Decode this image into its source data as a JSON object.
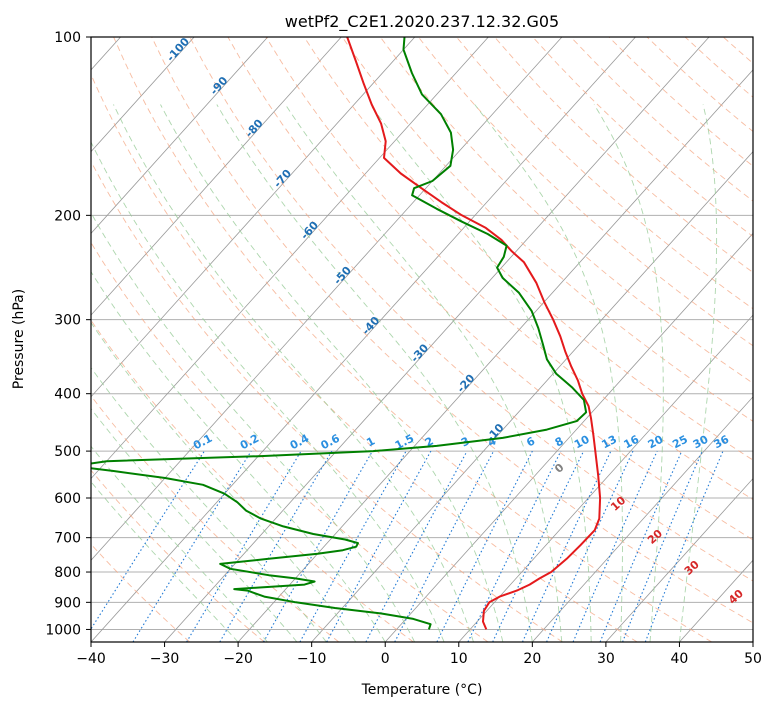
{
  "chart_data": {
    "type": "line",
    "title": "wetPf2_C2E1.2020.237.12.32.G05",
    "xlabel": "Temperature (°C)",
    "ylabel": "Pressure (hPa)",
    "xlim": [
      -40,
      50
    ],
    "ylim": [
      1050,
      100
    ],
    "y_scale": "log",
    "grid": true,
    "x_ticks": [
      -40,
      -30,
      -20,
      -10,
      0,
      10,
      20,
      30,
      40,
      50
    ],
    "y_ticks": [
      100,
      200,
      300,
      400,
      500,
      600,
      700,
      800,
      900,
      1000
    ],
    "colors": {
      "temperature": "#e41a1c",
      "dewpoint": "#008000",
      "isotherm": "#999999",
      "dry_adiabat": "#f4a582",
      "moist_adiabat": "#99cc99",
      "mixing_ratio": "#1f78d4",
      "grid": "#b0b0b0"
    },
    "series": [
      {
        "values": [
          {
            "p": 1000,
            "t": 12.2
          },
          {
            "p": 970,
            "t": 10.8
          },
          {
            "p": 930,
            "t": 9.6
          },
          {
            "p": 900,
            "t": 9.3
          },
          {
            "p": 880,
            "t": 10.0
          },
          {
            "p": 860,
            "t": 11.6
          },
          {
            "p": 840,
            "t": 12.6
          },
          {
            "p": 820,
            "t": 13.2
          },
          {
            "p": 800,
            "t": 14.0
          },
          {
            "p": 760,
            "t": 14.5
          },
          {
            "p": 720,
            "t": 14.7
          },
          {
            "p": 680,
            "t": 14.8
          },
          {
            "p": 650,
            "t": 14.0
          },
          {
            "p": 600,
            "t": 11.6
          },
          {
            "p": 550,
            "t": 8.6
          },
          {
            "p": 500,
            "t": 5.2
          },
          {
            "p": 470,
            "t": 3.0
          },
          {
            "p": 440,
            "t": 0.6
          },
          {
            "p": 420,
            "t": -1.2
          },
          {
            "p": 400,
            "t": -3.6
          },
          {
            "p": 380,
            "t": -5.8
          },
          {
            "p": 360,
            "t": -8.4
          },
          {
            "p": 340,
            "t": -11.0
          },
          {
            "p": 320,
            "t": -13.6
          },
          {
            "p": 300,
            "t": -16.6
          },
          {
            "p": 280,
            "t": -20.0
          },
          {
            "p": 260,
            "t": -23.4
          },
          {
            "p": 240,
            "t": -27.6
          },
          {
            "p": 230,
            "t": -30.6
          },
          {
            "p": 220,
            "t": -33.4
          },
          {
            "p": 210,
            "t": -37.0
          },
          {
            "p": 200,
            "t": -41.8
          },
          {
            "p": 190,
            "t": -46.2
          },
          {
            "p": 180,
            "t": -50.6
          },
          {
            "p": 170,
            "t": -55.2
          },
          {
            "p": 160,
            "t": -59.4
          },
          {
            "p": 150,
            "t": -61.2
          },
          {
            "p": 140,
            "t": -64.0
          },
          {
            "p": 130,
            "t": -67.6
          },
          {
            "p": 120,
            "t": -71.2
          },
          {
            "p": 110,
            "t": -75.0
          },
          {
            "p": 100,
            "t": -79.2
          }
        ]
      },
      {
        "values": [
          {
            "p": 1000,
            "t": 4.4
          },
          {
            "p": 980,
            "t": 4.0
          },
          {
            "p": 960,
            "t": 1.0
          },
          {
            "p": 940,
            "t": -4.0
          },
          {
            "p": 920,
            "t": -11.0
          },
          {
            "p": 900,
            "t": -17.0
          },
          {
            "p": 880,
            "t": -22.0
          },
          {
            "p": 860,
            "t": -25.0
          },
          {
            "p": 855,
            "t": -27.0
          },
          {
            "p": 850,
            "t": -24.0
          },
          {
            "p": 840,
            "t": -18.0
          },
          {
            "p": 830,
            "t": -17.0
          },
          {
            "p": 820,
            "t": -20.0
          },
          {
            "p": 810,
            "t": -24.0
          },
          {
            "p": 790,
            "t": -30.0
          },
          {
            "p": 775,
            "t": -32.0
          },
          {
            "p": 760,
            "t": -26.0
          },
          {
            "p": 745,
            "t": -20.0
          },
          {
            "p": 735,
            "t": -17.0
          },
          {
            "p": 725,
            "t": -15.6
          },
          {
            "p": 715,
            "t": -15.8
          },
          {
            "p": 705,
            "t": -18.0
          },
          {
            "p": 690,
            "t": -23.0
          },
          {
            "p": 670,
            "t": -28.0
          },
          {
            "p": 650,
            "t": -32.0
          },
          {
            "p": 630,
            "t": -35.0
          },
          {
            "p": 610,
            "t": -37.2
          },
          {
            "p": 590,
            "t": -40.0
          },
          {
            "p": 570,
            "t": -44.0
          },
          {
            "p": 555,
            "t": -50.0
          },
          {
            "p": 540,
            "t": -58.0
          },
          {
            "p": 530,
            "t": -64.0
          },
          {
            "p": 520,
            "t": -60.0
          },
          {
            "p": 510,
            "t": -40.0
          },
          {
            "p": 500,
            "t": -25.0
          },
          {
            "p": 490,
            "t": -17.0
          },
          {
            "p": 475,
            "t": -9.0
          },
          {
            "p": 460,
            "t": -4.0
          },
          {
            "p": 445,
            "t": -1.0
          },
          {
            "p": 430,
            "t": -0.8
          },
          {
            "p": 410,
            "t": -2.6
          },
          {
            "p": 390,
            "t": -5.8
          },
          {
            "p": 370,
            "t": -9.6
          },
          {
            "p": 350,
            "t": -12.6
          },
          {
            "p": 330,
            "t": -15.0
          },
          {
            "p": 310,
            "t": -17.6
          },
          {
            "p": 290,
            "t": -20.6
          },
          {
            "p": 270,
            "t": -24.6
          },
          {
            "p": 255,
            "t": -28.6
          },
          {
            "p": 245,
            "t": -30.6
          },
          {
            "p": 235,
            "t": -31.0
          },
          {
            "p": 225,
            "t": -32.0
          },
          {
            "p": 215,
            "t": -36.0
          },
          {
            "p": 205,
            "t": -41.0
          },
          {
            "p": 195,
            "t": -46.0
          },
          {
            "p": 185,
            "t": -51.0
          },
          {
            "p": 180,
            "t": -51.6
          },
          {
            "p": 175,
            "t": -50.0
          },
          {
            "p": 165,
            "t": -49.4
          },
          {
            "p": 155,
            "t": -51.0
          },
          {
            "p": 145,
            "t": -53.4
          },
          {
            "p": 135,
            "t": -57.0
          },
          {
            "p": 125,
            "t": -62.0
          },
          {
            "p": 115,
            "t": -66.0
          },
          {
            "p": 105,
            "t": -70.0
          },
          {
            "p": 100,
            "t": -71.4
          }
        ]
      }
    ],
    "annotations": {
      "isotherm_labels": [
        "-100",
        "-90",
        "-80",
        "-70",
        "-60",
        "-50",
        "-40",
        "-30",
        "-20",
        "-10"
      ],
      "mixing_ratio_labels": [
        "0.1",
        "0.2",
        "0.4",
        "0.6",
        "1",
        "1.5",
        "2",
        "3",
        "4",
        "6",
        "8",
        "10",
        "13",
        "16",
        "20",
        "25",
        "30",
        "36"
      ],
      "dry_adiabat_labels": [
        "0",
        "10",
        "20",
        "30",
        "40"
      ]
    }
  }
}
